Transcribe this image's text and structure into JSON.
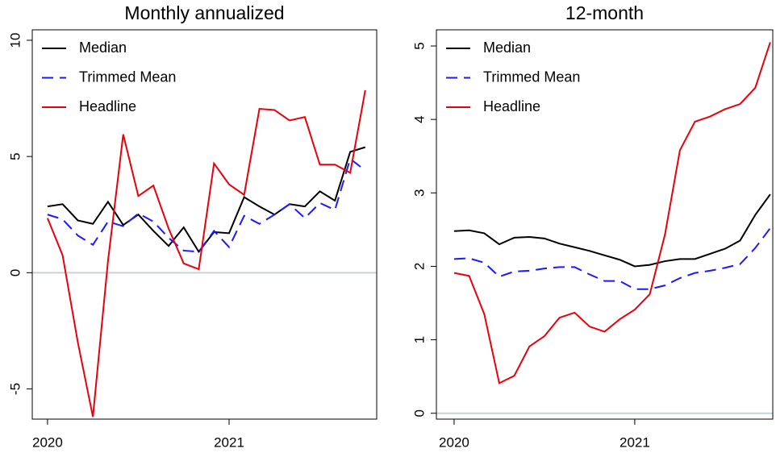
{
  "chart_data": [
    {
      "type": "line",
      "title": "Monthly annualized",
      "x": [
        2020,
        2020.083,
        2020.167,
        2020.25,
        2020.333,
        2020.417,
        2020.5,
        2020.583,
        2020.667,
        2020.75,
        2020.833,
        2020.917,
        2021,
        2021.083,
        2021.167,
        2021.25,
        2021.333,
        2021.417,
        2021.5,
        2021.583,
        2021.667,
        2021.75
      ],
      "series": [
        {
          "name": "Median",
          "color": "#000000",
          "style": "solid",
          "values": [
            2.85,
            2.95,
            2.25,
            2.1,
            3.05,
            2.05,
            2.5,
            1.8,
            1.15,
            1.95,
            0.9,
            1.75,
            1.7,
            3.25,
            2.85,
            2.5,
            2.95,
            2.85,
            3.5,
            3.1,
            5.2,
            5.4
          ]
        },
        {
          "name": "Trimmed Mean",
          "color": "#1a1aff",
          "style": "dashed",
          "values": [
            2.5,
            2.3,
            1.6,
            1.2,
            2.2,
            2.0,
            2.55,
            2.2,
            1.5,
            0.95,
            0.9,
            1.8,
            1.1,
            2.45,
            2.1,
            2.5,
            2.95,
            2.35,
            3.0,
            2.7,
            4.9,
            4.4
          ]
        },
        {
          "name": "Headline",
          "color": "#e8000b",
          "style": "solid",
          "values": [
            2.35,
            0.75,
            -3.0,
            -6.2,
            0.5,
            5.95,
            3.3,
            3.75,
            1.9,
            0.4,
            0.15,
            4.7,
            3.8,
            3.35,
            7.05,
            7.0,
            6.55,
            6.7,
            4.65,
            4.65,
            4.3,
            7.85
          ]
        }
      ],
      "xlim": [
        2019.916,
        2021.813
      ],
      "xticks": [
        2020,
        2021
      ],
      "ylim": [
        -6.3,
        10.45
      ],
      "yticks": [
        -5,
        0,
        5,
        10
      ],
      "yline": 0,
      "legend": "top-left"
    },
    {
      "type": "line",
      "title": "12-month",
      "x": [
        2020,
        2020.083,
        2020.167,
        2020.25,
        2020.333,
        2020.417,
        2020.5,
        2020.583,
        2020.667,
        2020.75,
        2020.833,
        2020.917,
        2021,
        2021.083,
        2021.167,
        2021.25,
        2021.333,
        2021.417,
        2021.5,
        2021.583,
        2021.667,
        2021.75
      ],
      "series": [
        {
          "name": "Median",
          "color": "#000000",
          "style": "solid",
          "values": [
            2.48,
            2.49,
            2.45,
            2.3,
            2.39,
            2.4,
            2.38,
            2.31,
            2.26,
            2.21,
            2.15,
            2.09,
            2.0,
            2.02,
            2.07,
            2.1,
            2.1,
            2.17,
            2.24,
            2.35,
            2.7,
            2.98
          ]
        },
        {
          "name": "Trimmed Mean",
          "color": "#1a1aff",
          "style": "dashed",
          "values": [
            2.1,
            2.11,
            2.05,
            1.86,
            1.93,
            1.94,
            1.97,
            1.99,
            1.99,
            1.89,
            1.8,
            1.8,
            1.69,
            1.69,
            1.74,
            1.84,
            1.91,
            1.94,
            1.98,
            2.03,
            2.25,
            2.52
          ]
        },
        {
          "name": "Headline",
          "color": "#e8000b",
          "style": "solid",
          "values": [
            1.91,
            1.87,
            1.35,
            0.41,
            0.51,
            0.91,
            1.05,
            1.3,
            1.37,
            1.18,
            1.11,
            1.28,
            1.41,
            1.62,
            2.43,
            3.58,
            3.97,
            4.04,
            4.14,
            4.21,
            4.43,
            5.05
          ]
        }
      ],
      "xlim": [
        2019.902,
        2021.764
      ],
      "xticks": [
        2020,
        2021
      ],
      "ylim": [
        -0.08,
        5.22
      ],
      "yticks": [
        0,
        1,
        2,
        3,
        4,
        5
      ],
      "yline": 0,
      "legend": "top-left"
    }
  ]
}
